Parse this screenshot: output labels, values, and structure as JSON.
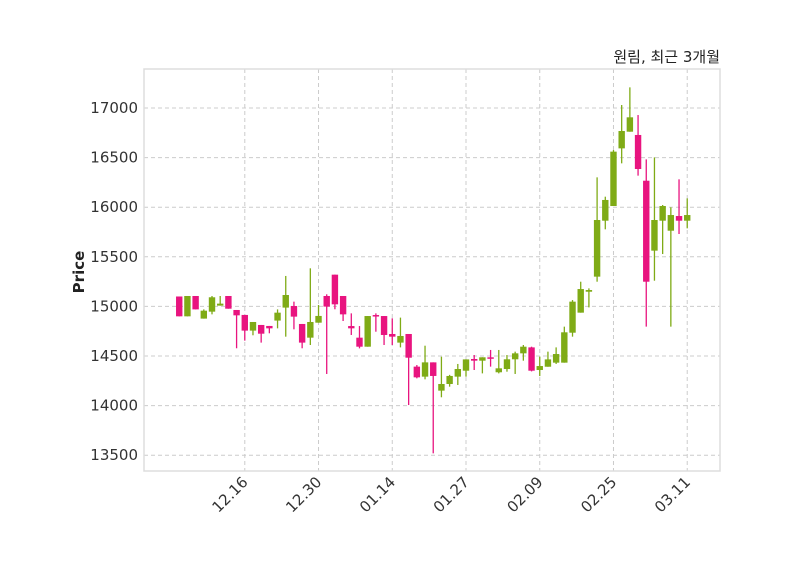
{
  "chart_data": {
    "type": "candlestick",
    "title": "원림, 최근 3개월",
    "xlabel": "",
    "ylabel": "Price",
    "ylim": [
      13341,
      17393
    ],
    "xlim": [
      -4.3,
      66
    ],
    "grid": true,
    "yticks": [
      13500,
      14000,
      14500,
      15000,
      15500,
      16000,
      16500,
      17000
    ],
    "xticks": [
      {
        "index": 8,
        "label": "12.16"
      },
      {
        "index": 17,
        "label": "12.30"
      },
      {
        "index": 26,
        "label": "01.14"
      },
      {
        "index": 35,
        "label": "01.27"
      },
      {
        "index": 44,
        "label": "02.09"
      },
      {
        "index": 53,
        "label": "02.25"
      },
      {
        "index": 62,
        "label": "03.11"
      }
    ],
    "colors": {
      "up": "#7fab16",
      "down": "#e8147f",
      "grid": "#cccccc",
      "frame": "#dddddd"
    },
    "ohlc": [
      [
        15100,
        15100,
        14900,
        14900
      ],
      [
        14900,
        15105,
        14900,
        15105
      ],
      [
        15105,
        15105,
        14970,
        14970
      ],
      [
        14877,
        14970,
        14877,
        14957
      ],
      [
        14947,
        15105,
        14920,
        15092
      ],
      [
        15008,
        15105,
        15008,
        15028
      ],
      [
        15105,
        15105,
        14977,
        14977
      ],
      [
        14964,
        14964,
        14578,
        14910
      ],
      [
        14914,
        14914,
        14655,
        14756
      ],
      [
        14756,
        14843,
        14709,
        14843
      ],
      [
        14813,
        14813,
        14635,
        14725
      ],
      [
        14803,
        14803,
        14729,
        14779
      ],
      [
        14857,
        14970,
        14779,
        14937
      ],
      [
        14988,
        15307,
        14695,
        15115
      ],
      [
        15004,
        15048,
        14769,
        14897
      ],
      [
        14823,
        14823,
        14578,
        14635
      ],
      [
        14685,
        15384,
        14611,
        14843
      ],
      [
        14836,
        15014,
        14836,
        14904
      ],
      [
        15105,
        15122,
        14319,
        14998
      ],
      [
        15320,
        15320,
        14971,
        15021
      ],
      [
        15105,
        15105,
        14853,
        14920
      ],
      [
        14802,
        14930,
        14712,
        14779
      ],
      [
        14685,
        14802,
        14577,
        14594
      ],
      [
        14594,
        14903,
        14594,
        14903
      ],
      [
        14913,
        14930,
        14745,
        14903
      ],
      [
        14903,
        14903,
        14611,
        14712
      ],
      [
        14722,
        14880,
        14611,
        14695
      ],
      [
        14635,
        14887,
        14587,
        14702
      ],
      [
        14722,
        14722,
        14006,
        14483
      ],
      [
        14393,
        14409,
        14275,
        14285
      ],
      [
        14292,
        14604,
        14265,
        14436
      ],
      [
        14436,
        14436,
        13519,
        14299
      ],
      [
        14151,
        14493,
        14084,
        14218
      ],
      [
        14218,
        14310,
        14191,
        14299
      ],
      [
        14292,
        14420,
        14208,
        14369
      ],
      [
        14352,
        14466,
        14292,
        14466
      ],
      [
        14470,
        14510,
        14359,
        14453
      ],
      [
        14453,
        14487,
        14325,
        14487
      ],
      [
        14487,
        14561,
        14393,
        14477
      ],
      [
        14336,
        14561,
        14325,
        14376
      ],
      [
        14369,
        14510,
        14342,
        14467
      ],
      [
        14467,
        14544,
        14319,
        14527
      ],
      [
        14527,
        14611,
        14453,
        14594
      ],
      [
        14587,
        14594,
        14345,
        14352
      ],
      [
        14359,
        14493,
        14298,
        14399
      ],
      [
        14392,
        14544,
        14392,
        14466
      ],
      [
        14433,
        14587,
        14420,
        14520
      ],
      [
        14433,
        14796,
        14433,
        14739
      ],
      [
        14735,
        15064,
        14695,
        15048
      ],
      [
        14937,
        15249,
        14937,
        15175
      ],
      [
        15148,
        15182,
        14990,
        15165
      ],
      [
        15300,
        16301,
        15249,
        15871
      ],
      [
        15864,
        16106,
        15777,
        16073
      ],
      [
        16012,
        16576,
        16012,
        16560
      ],
      [
        16593,
        17030,
        16442,
        16768
      ],
      [
        16761,
        17208,
        16761,
        16906
      ],
      [
        16728,
        16929,
        16318,
        16385
      ],
      [
        16267,
        16482,
        14796,
        15249
      ],
      [
        15562,
        16502,
        15259,
        15871
      ],
      [
        15864,
        16022,
        15528,
        16012
      ],
      [
        15763,
        15999,
        14796,
        15921
      ],
      [
        15911,
        16281,
        15730,
        15864
      ],
      [
        15864,
        16089,
        15787,
        15921
      ]
    ]
  }
}
